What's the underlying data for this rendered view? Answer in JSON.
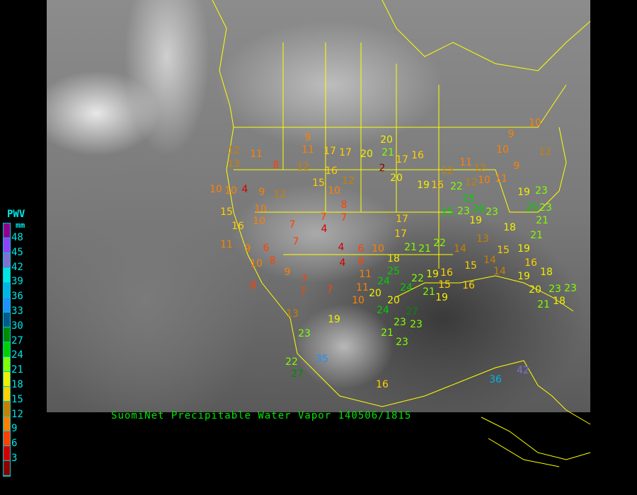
{
  "title": "SuomiNet Precipitable Water Vapor 140506/1815",
  "legend": {
    "title": "PWV",
    "unit": "mm",
    "ticks": [
      "48",
      "45",
      "42",
      "39",
      "36",
      "33",
      "30",
      "27",
      "24",
      "21",
      "18",
      "15",
      "12",
      "9",
      "6",
      "3"
    ],
    "colors": [
      "#900090",
      "#9040ff",
      "#8070d0",
      "#00e6e6",
      "#00b4e6",
      "#1e90ff",
      "#005a8c",
      "#008c00",
      "#00d000",
      "#80ff00",
      "#f0f000",
      "#ffd000",
      "#c88000",
      "#ff8000",
      "#ff4000",
      "#d00000",
      "#8b0000"
    ]
  },
  "border_color": "#ffff00",
  "stations": [
    12,
    13,
    11,
    8,
    9,
    11,
    17,
    17,
    20,
    21,
    20,
    2,
    17,
    16,
    12,
    16,
    15,
    12,
    10,
    8,
    10,
    10,
    4,
    9,
    12,
    15,
    16,
    10,
    10,
    7,
    7,
    4,
    7,
    7,
    4,
    4,
    6,
    10,
    17,
    17,
    21,
    21,
    22,
    18,
    11,
    8,
    25,
    24,
    20,
    11,
    10,
    20,
    24,
    22,
    21,
    19,
    16,
    15,
    19,
    16,
    14,
    13,
    15,
    18,
    19,
    21,
    16,
    18,
    19,
    14,
    15,
    14,
    20,
    23,
    18,
    21,
    23,
    19,
    23,
    26,
    23,
    25,
    25,
    22,
    19,
    16,
    12,
    12,
    10,
    12,
    11,
    9,
    11,
    19,
    23,
    25,
    23,
    21,
    10,
    9,
    10,
    12,
    13,
    23,
    19,
    24,
    21,
    23,
    27,
    23,
    23,
    35,
    22,
    27,
    16,
    36,
    42,
    10,
    8,
    9,
    7,
    7,
    8,
    6,
    9,
    11,
    20,
    7
  ]
}
